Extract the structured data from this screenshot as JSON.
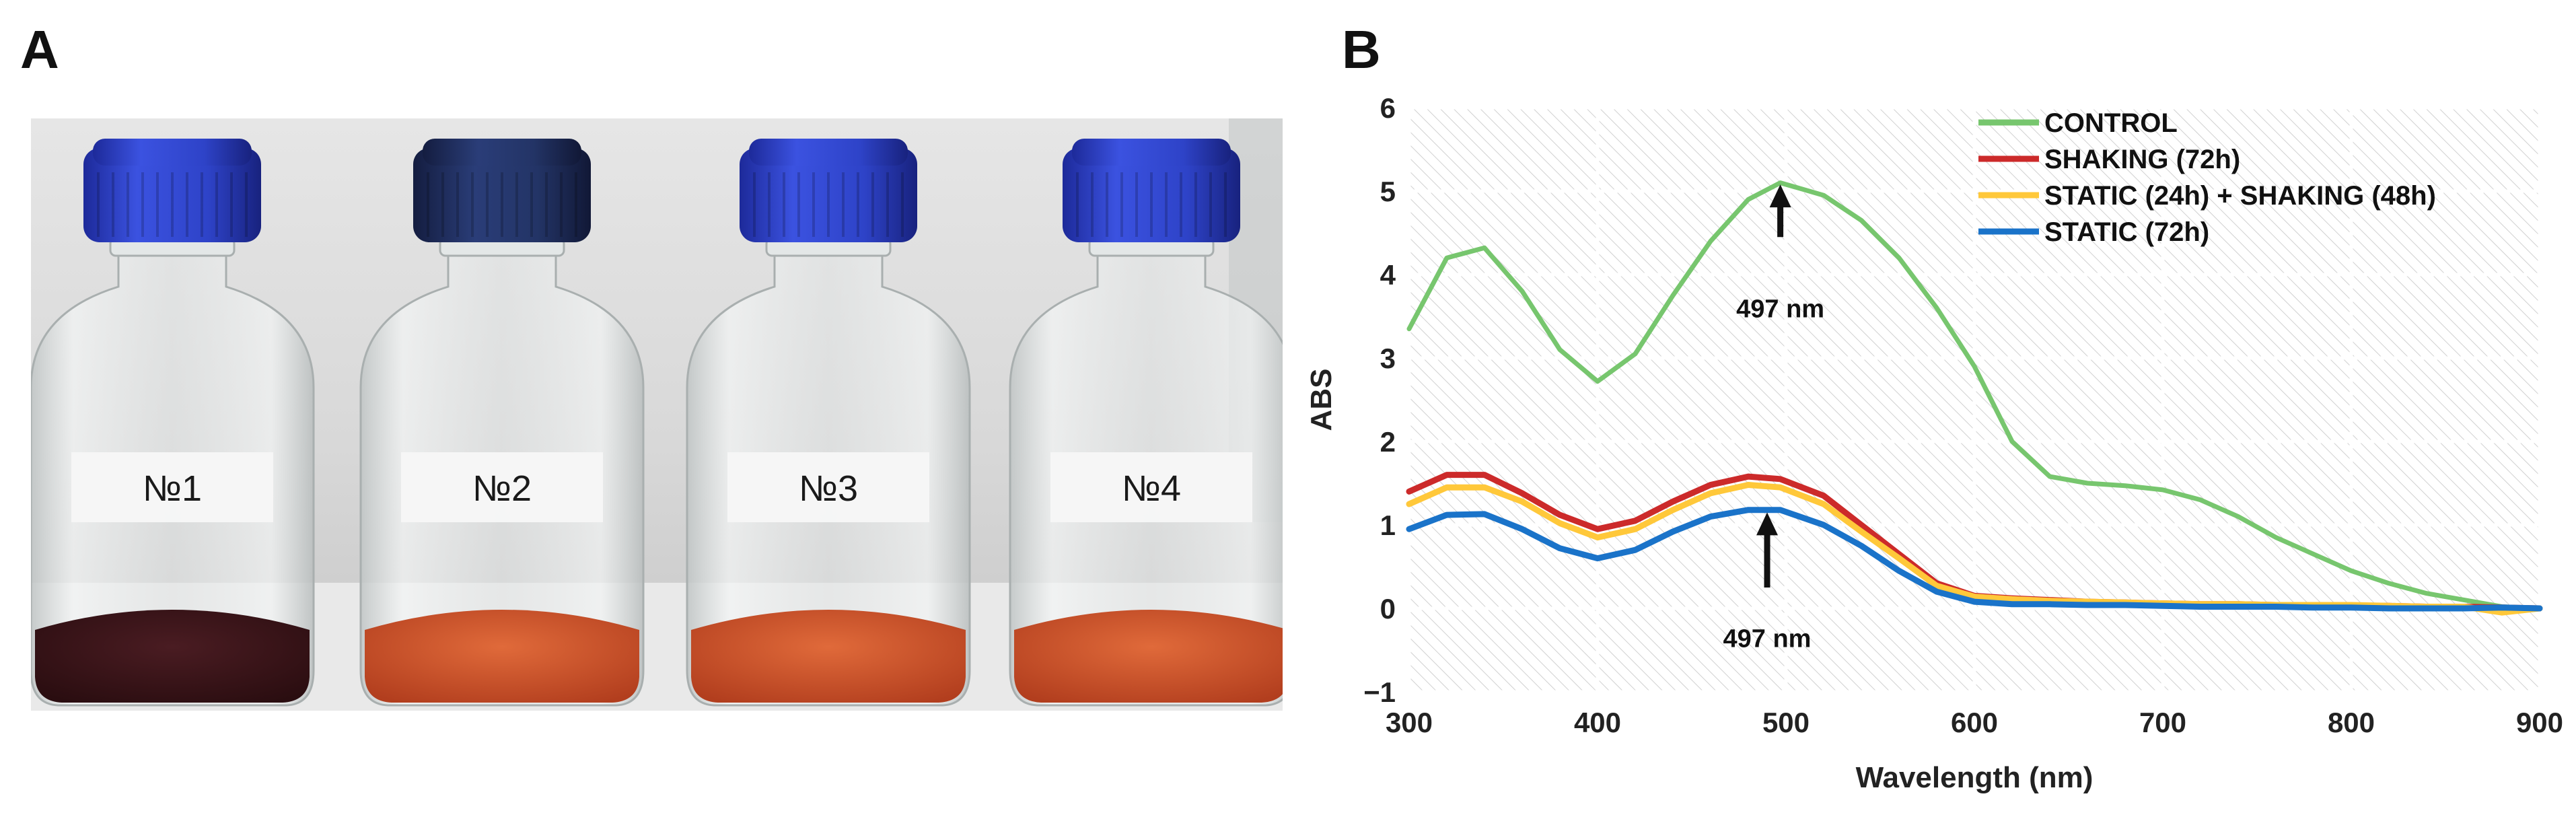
{
  "panels": {
    "a_label": "A",
    "b_label": "B"
  },
  "photo": {
    "bottles": [
      {
        "label": "№1",
        "liquid": "dark"
      },
      {
        "label": "№2",
        "liquid": "orange"
      },
      {
        "label": "№3",
        "liquid": "orange"
      },
      {
        "label": "№4",
        "liquid": "orange"
      }
    ],
    "colors": {
      "cap": "#2f44c9",
      "cap_dark": "#1e2e63",
      "liquid_dark": "#3a1418",
      "liquid_orange": "#c8512b"
    }
  },
  "chart_data": {
    "type": "line",
    "xlabel": "Wavelength (nm)",
    "ylabel": "ABS",
    "xlim": [
      300,
      900
    ],
    "ylim": [
      -1,
      6
    ],
    "xticks": [
      300,
      400,
      500,
      600,
      700,
      800,
      900
    ],
    "yticks": [
      -1,
      0,
      1,
      2,
      3,
      4,
      5,
      6
    ],
    "ytick_labels": [
      "−1",
      "0",
      "1",
      "2",
      "3",
      "4",
      "5",
      "6"
    ],
    "x": [
      300,
      320,
      340,
      360,
      380,
      400,
      420,
      440,
      460,
      480,
      497,
      520,
      540,
      560,
      580,
      600,
      620,
      640,
      660,
      680,
      700,
      720,
      740,
      760,
      780,
      800,
      820,
      840,
      860,
      880,
      900
    ],
    "series": [
      {
        "name": "CONTROL",
        "color": "#77c66e",
        "values": [
          3.35,
          4.2,
          4.32,
          3.8,
          3.1,
          2.72,
          3.05,
          3.75,
          4.4,
          4.9,
          5.1,
          4.95,
          4.65,
          4.2,
          3.6,
          2.9,
          2.0,
          1.58,
          1.5,
          1.47,
          1.42,
          1.3,
          1.1,
          0.85,
          0.65,
          0.45,
          0.3,
          0.18,
          0.1,
          0.02,
          0.0
        ]
      },
      {
        "name": "SHAKING (72h)",
        "color": "#cc2a2a",
        "values": [
          1.4,
          1.6,
          1.6,
          1.38,
          1.12,
          0.95,
          1.05,
          1.28,
          1.48,
          1.58,
          1.55,
          1.35,
          1.0,
          0.65,
          0.3,
          0.15,
          0.12,
          0.1,
          0.08,
          0.07,
          0.06,
          0.05,
          0.05,
          0.04,
          0.04,
          0.03,
          0.03,
          0.02,
          0.02,
          0.01,
          0.0
        ]
      },
      {
        "name": "STATIC (24h) + SHAKING (48h)",
        "color": "#ffc83a",
        "values": [
          1.25,
          1.45,
          1.45,
          1.28,
          1.02,
          0.85,
          0.95,
          1.18,
          1.38,
          1.48,
          1.45,
          1.25,
          0.92,
          0.6,
          0.27,
          0.14,
          0.11,
          0.09,
          0.08,
          0.07,
          0.06,
          0.05,
          0.05,
          0.04,
          0.04,
          0.04,
          0.03,
          0.02,
          0.02,
          -0.05,
          0.0
        ]
      },
      {
        "name": "STATIC (72h)",
        "color": "#1a73c9",
        "values": [
          0.95,
          1.12,
          1.13,
          0.95,
          0.72,
          0.6,
          0.7,
          0.92,
          1.1,
          1.18,
          1.18,
          1.0,
          0.75,
          0.45,
          0.2,
          0.08,
          0.05,
          0.05,
          0.04,
          0.04,
          0.03,
          0.02,
          0.02,
          0.02,
          0.01,
          0.01,
          0.0,
          0.0,
          0.0,
          0.01,
          0.0
        ]
      }
    ],
    "annotations": [
      {
        "text": "497 nm",
        "x": 497,
        "arrow_from": 4.45,
        "arrow_to": 5.08,
        "label_y": 3.6
      },
      {
        "text": "497 nm",
        "x": 490,
        "arrow_from": 0.25,
        "arrow_to": 1.15,
        "label_y": -0.35
      }
    ],
    "legend_position": "top-right",
    "grid": true
  }
}
